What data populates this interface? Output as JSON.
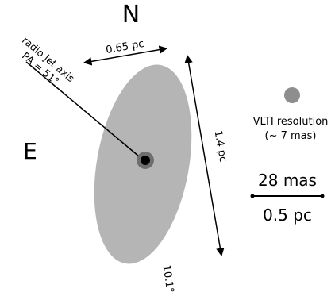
{
  "compass": {
    "north": "N",
    "east": "E"
  },
  "ellipse": {
    "width_label": "0.65 pc",
    "height_label": "1.4 pc",
    "pa_label": "10.1°",
    "fill": "#b5b5b5"
  },
  "jet": {
    "line1": "radio jet axis",
    "line2": "PA = 51°"
  },
  "vlti": {
    "line1": "VLTI resolution",
    "line2": "(~ 7 mas)",
    "dot_color": "#8e8e8e"
  },
  "scale": {
    "top": "28 mas",
    "bottom": "0.5 pc"
  }
}
